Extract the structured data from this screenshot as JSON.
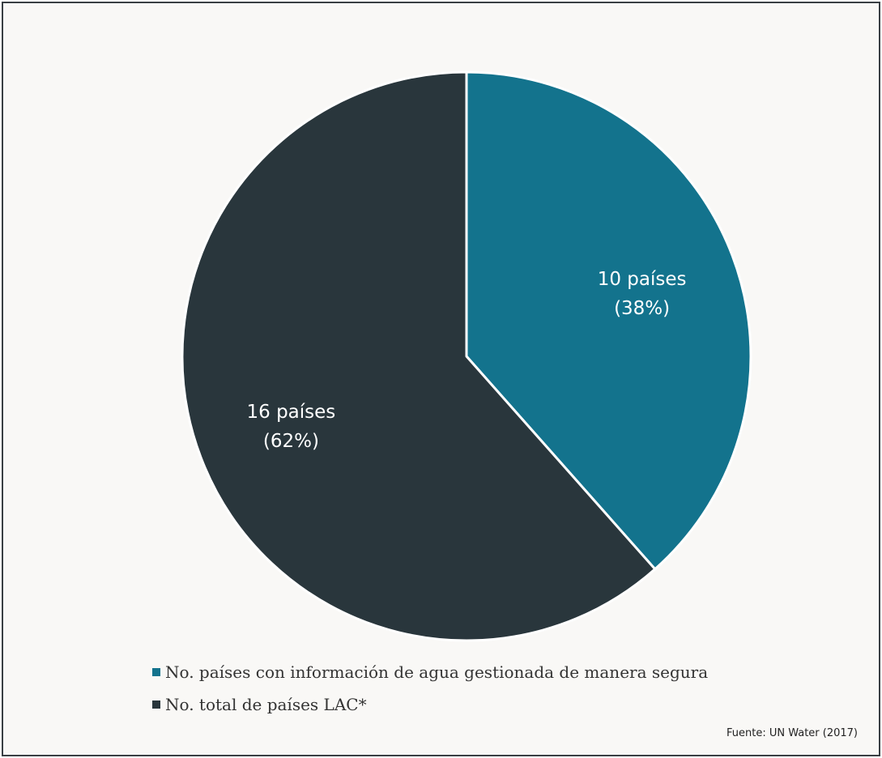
{
  "chart_data": {
    "type": "pie",
    "slices": [
      {
        "name": "No. países con información de agua gestionada de manera segura",
        "value": 10,
        "percent": 38,
        "label_line1": "10 países",
        "label_line2": "(38%)",
        "color": "#13738d"
      },
      {
        "name": "No. total de países LAC*",
        "value": 16,
        "percent": 62,
        "label_line1": "16 países",
        "label_line2": "(62%)",
        "color": "#29363c"
      }
    ],
    "legend_position": "bottom",
    "start_angle_deg": 0,
    "direction": "clockwise"
  },
  "legend": {
    "items": [
      {
        "label": "No. países con información de agua gestionada de manera segura",
        "color": "#13738d"
      },
      {
        "label": "No. total de países LAC*",
        "color": "#29363c"
      }
    ]
  },
  "source": "Fuente: UN Water (2017)"
}
